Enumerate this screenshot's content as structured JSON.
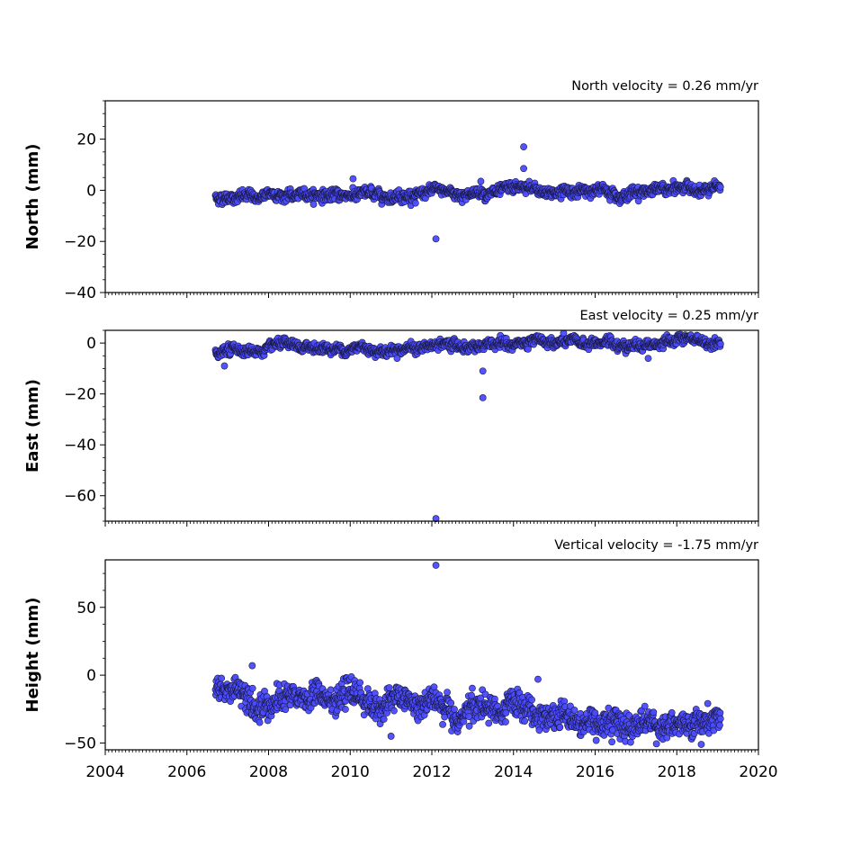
{
  "chart_data": [
    {
      "type": "scatter",
      "title": "North velocity = 0.26 mm/yr",
      "xlabel": "",
      "ylabel": "North (mm)",
      "xlim": [
        2004,
        2020
      ],
      "ylim": [
        -40,
        35
      ],
      "yticks": [
        -40,
        -20,
        0,
        20
      ],
      "grid": false,
      "marker_color": "#4b4bff",
      "edge_color": "#1a1a40",
      "x_range": [
        2006.7,
        2019.07
      ],
      "velocity_mm_per_yr": 0.26,
      "baseline_mm": [
        -2.5,
        0.5
      ],
      "scatter_mm": 1.3,
      "outliers": [
        {
          "x": 2010.07,
          "y": 4.5
        },
        {
          "x": 2012.1,
          "y": -19
        },
        {
          "x": 2014.25,
          "y": 17
        },
        {
          "x": 2014.25,
          "y": 8.5
        },
        {
          "x": 2011.6,
          "y": -5
        },
        {
          "x": 2013.2,
          "y": 3.5
        }
      ]
    },
    {
      "type": "scatter",
      "title": "East velocity = 0.25 mm/yr",
      "xlabel": "",
      "ylabel": "East (mm)",
      "xlim": [
        2004,
        2020
      ],
      "ylim": [
        -70,
        5
      ],
      "yticks": [
        -60,
        -40,
        -20,
        0
      ],
      "grid": false,
      "marker_color": "#4b4bff",
      "edge_color": "#1a1a40",
      "x_range": [
        2006.7,
        2019.07
      ],
      "velocity_mm_per_yr": 0.25,
      "baseline_mm": [
        -3,
        0.5
      ],
      "scatter_mm": 1.2,
      "outliers": [
        {
          "x": 2012.1,
          "y": -69
        },
        {
          "x": 2013.25,
          "y": -11
        },
        {
          "x": 2013.25,
          "y": -21.5
        },
        {
          "x": 2006.92,
          "y": -9
        },
        {
          "x": 2011.15,
          "y": -6
        },
        {
          "x": 2017.3,
          "y": -6
        }
      ]
    },
    {
      "type": "scatter",
      "title": "Vertical velocity = -1.75 mm/yr",
      "xlabel": "",
      "ylabel": "Height (mm)",
      "xlim": [
        2004,
        2020
      ],
      "ylim": [
        -55,
        85
      ],
      "yticks": [
        -50,
        0,
        50
      ],
      "xticks": [
        2004,
        2006,
        2008,
        2010,
        2012,
        2014,
        2016,
        2018,
        2020
      ],
      "grid": false,
      "marker_color": "#4b4bff",
      "edge_color": "#1a1a40",
      "x_range": [
        2006.7,
        2019.07
      ],
      "velocity_mm_per_yr": -1.75,
      "baseline_mm": [
        -12,
        -38
      ],
      "scatter_mm": 6,
      "outliers": [
        {
          "x": 2012.1,
          "y": 81
        },
        {
          "x": 2007.6,
          "y": 7
        },
        {
          "x": 2014.6,
          "y": -3
        },
        {
          "x": 2011.0,
          "y": -45
        },
        {
          "x": 2018.6,
          "y": -51
        }
      ]
    }
  ]
}
